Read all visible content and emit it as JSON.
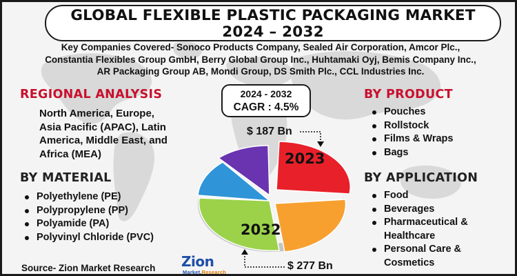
{
  "title": {
    "line1": "GLOBAL FLEXIBLE PLASTIC PACKAGING MARKET",
    "line2": "2024 – 2032"
  },
  "companies": {
    "line1": "Key Companies Covered- Sonoco Products Company, Sealed Air Corporation, Amcor Plc.,",
    "line2": "Constantia Flexibles Group GmbH, Berry Global Group Inc., Huhtamaki Oyj, Bemis Company Inc.,",
    "line3": "AR Packaging Group AB, Mondi Group, DS Smith Plc., CCL Industries Inc."
  },
  "regional": {
    "heading": "REGIONAL ANALYSIS",
    "line1": "North America, Europe,",
    "line2": "Asia Pacific (APAC), Latin",
    "line3": "America, Middle East, and",
    "line4": "Africa (MEA)"
  },
  "material": {
    "heading": "BY MATERIAL",
    "items": [
      "Polyethylene (PE)",
      "Polypropylene (PP)",
      "Polyamide (PA)",
      "Polyvinyl Chloride (PVC)"
    ]
  },
  "product": {
    "heading": "BY PRODUCT",
    "items": [
      "Pouches",
      "Rollstock",
      "Films & Wraps",
      "Bags"
    ]
  },
  "application": {
    "heading": "BY APPLICATION",
    "items": [
      "Food",
      "Beverages",
      "Pharmaceutical &",
      "Healthcare",
      "Personal Care &",
      "Cosmetics"
    ]
  },
  "center": {
    "period": "2024 - 2032",
    "cagr": "CAGR : 4.5%",
    "value_2024": "$ 187 Bn",
    "value_2032": "$ 277 Bn",
    "label_2023": "2023",
    "label_2032": "2032"
  },
  "source": "Source- Zion Market Research",
  "logo": {
    "word": "Zion",
    "sub_left": "Market.",
    "sub_right": "Research"
  },
  "colors": {
    "red": "#c8102e",
    "pie_red": "#e8202a",
    "pie_orange": "#f7a030",
    "pie_green": "#9bd24a",
    "pie_blue": "#2f95d8",
    "pie_purple": "#6a33b0",
    "logo_blue": "#1f4fa8"
  }
}
